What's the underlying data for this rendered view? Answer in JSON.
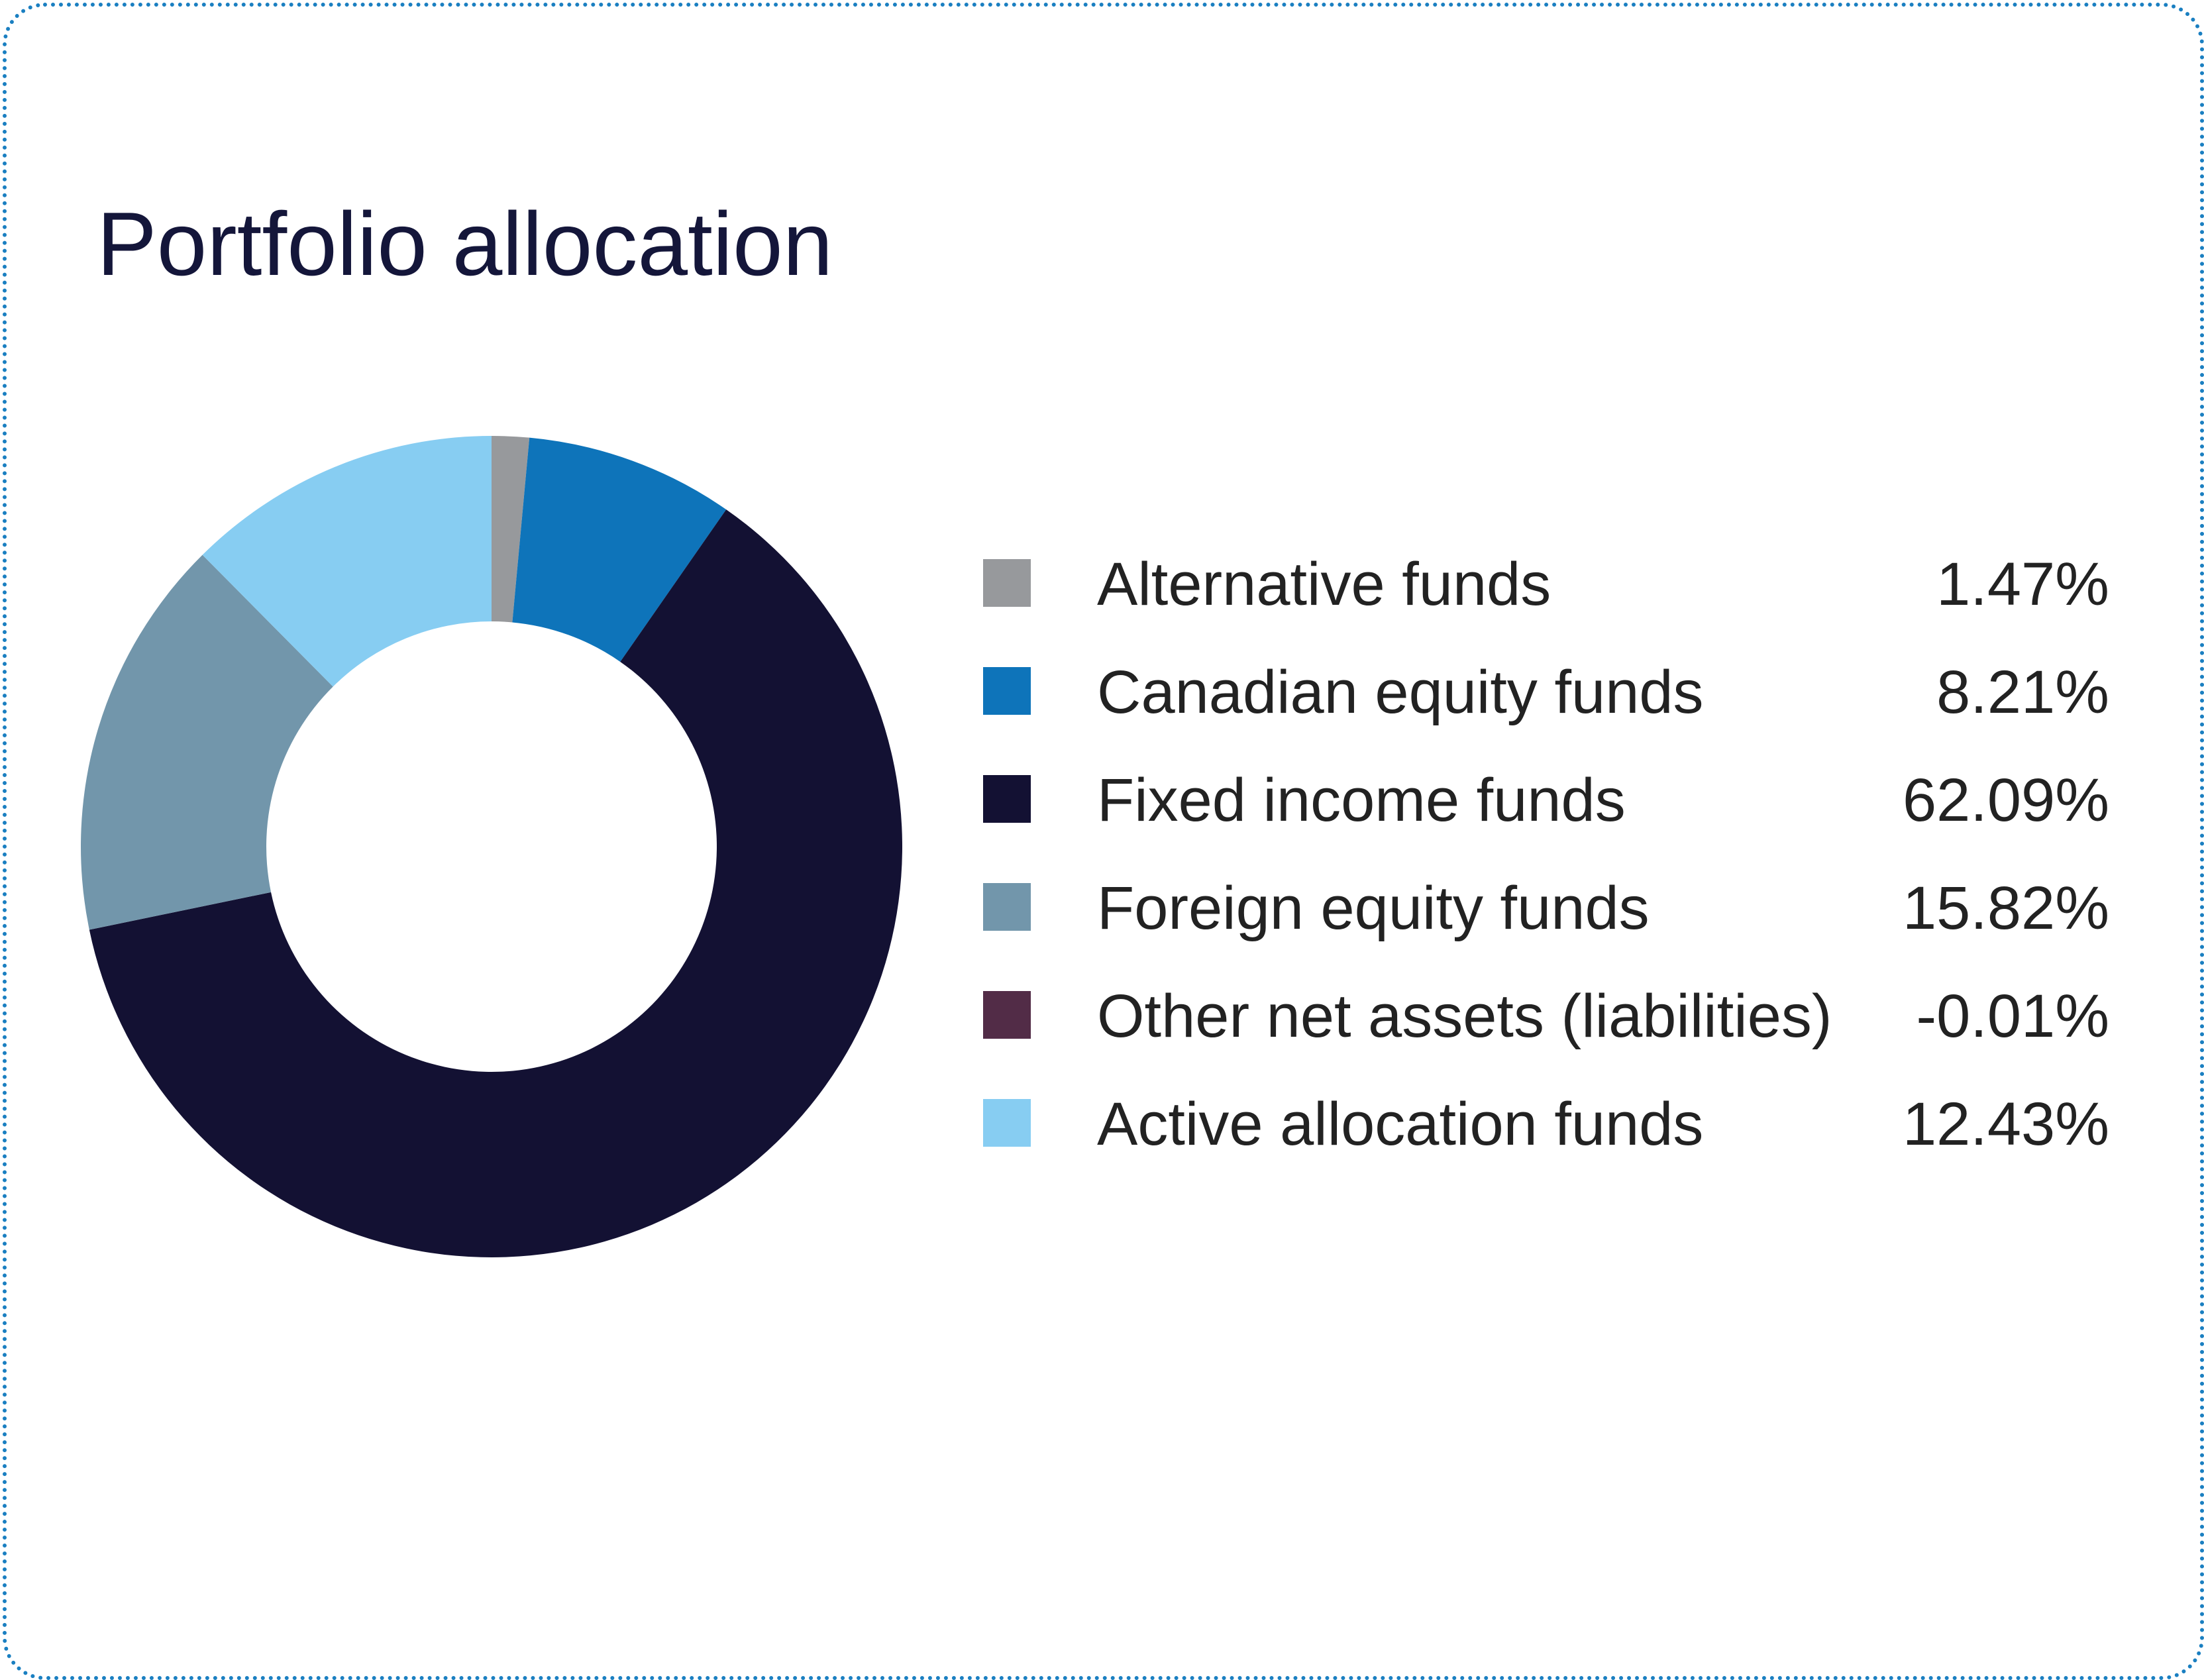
{
  "chart_data": {
    "type": "pie",
    "title": "Portfolio allocation",
    "donut": true,
    "slices": [
      {
        "label": "Alternative funds",
        "value": 1.47,
        "display": "1.47%",
        "color": "#97999c"
      },
      {
        "label": "Canadian equity funds",
        "value": 8.21,
        "display": "8.21%",
        "color": "#0e74ba"
      },
      {
        "label": "Fixed income funds",
        "value": 62.09,
        "display": "62.09%",
        "color": "#131133"
      },
      {
        "label": "Foreign equity funds",
        "value": 15.82,
        "display": "15.82%",
        "color": "#7296ab"
      },
      {
        "label": "Other net assets (liabilities)",
        "value": -0.01,
        "display": "-0.01%",
        "color": "#522c47"
      },
      {
        "label": "Active allocation funds",
        "value": 12.43,
        "display": "12.43%",
        "color": "#87cdf2"
      }
    ],
    "legend_position": "right"
  }
}
